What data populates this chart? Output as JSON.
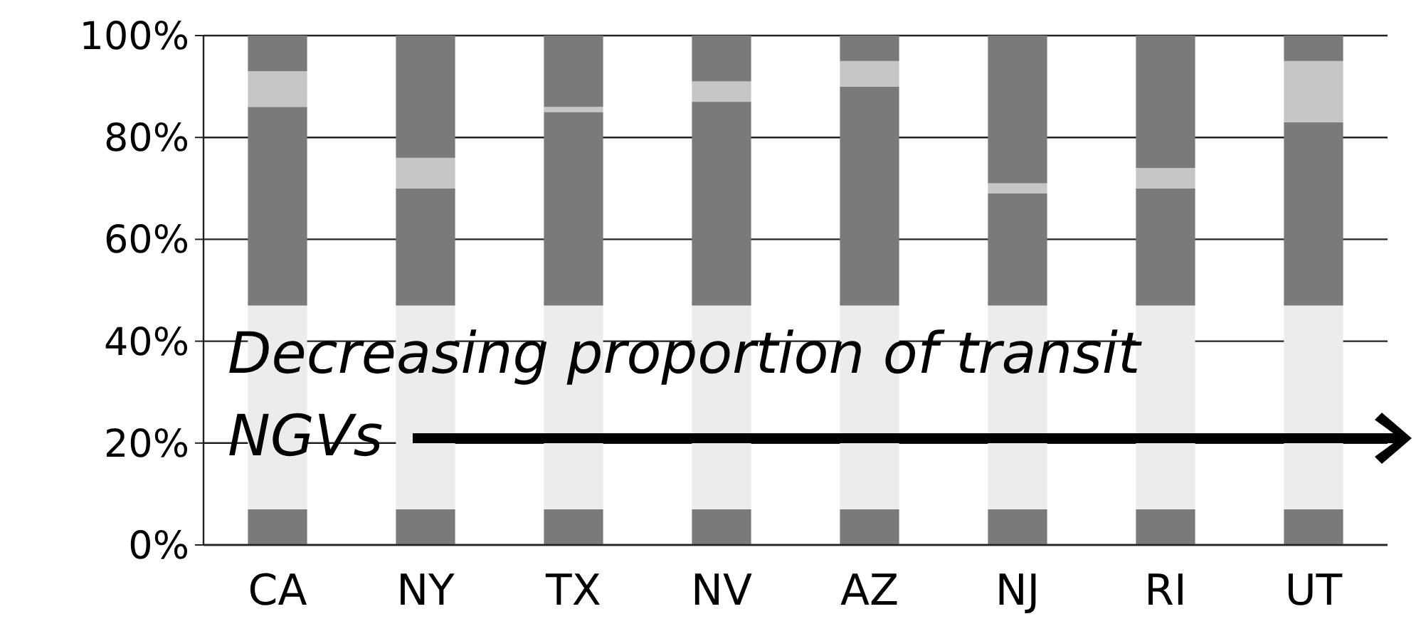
{
  "chart_data": {
    "type": "bar",
    "stacked": true,
    "categories": [
      "CA",
      "NY",
      "TX",
      "NV",
      "AZ",
      "NJ",
      "RI",
      "UT"
    ],
    "series": [
      {
        "color": "#7a7a7a",
        "values": [
          7,
          7,
          7,
          7,
          7,
          7,
          7,
          7
        ]
      },
      {
        "color": "#ececec",
        "values": [
          40,
          40,
          40,
          40,
          40,
          40,
          40,
          40
        ]
      },
      {
        "color": "#7a7a7a",
        "values": [
          39,
          23,
          38,
          40,
          43,
          22,
          23,
          36
        ]
      },
      {
        "color": "#c6c6c6",
        "values": [
          7,
          6,
          1,
          4,
          5,
          2,
          4,
          12
        ]
      },
      {
        "color": "#7a7a7a",
        "values": [
          7,
          24,
          14,
          9,
          5,
          29,
          26,
          5
        ]
      }
    ],
    "ylim": [
      0,
      100
    ],
    "yticks": [
      {
        "value": 0,
        "label": "0%"
      },
      {
        "value": 20,
        "label": "20%"
      },
      {
        "value": 40,
        "label": "40%"
      },
      {
        "value": 60,
        "label": "60%"
      },
      {
        "value": 80,
        "label": "80%"
      },
      {
        "value": 100,
        "label": "100%"
      }
    ],
    "grid": "y",
    "annotations": [
      "Decreasing proportion of transit",
      "NGVs"
    ]
  }
}
